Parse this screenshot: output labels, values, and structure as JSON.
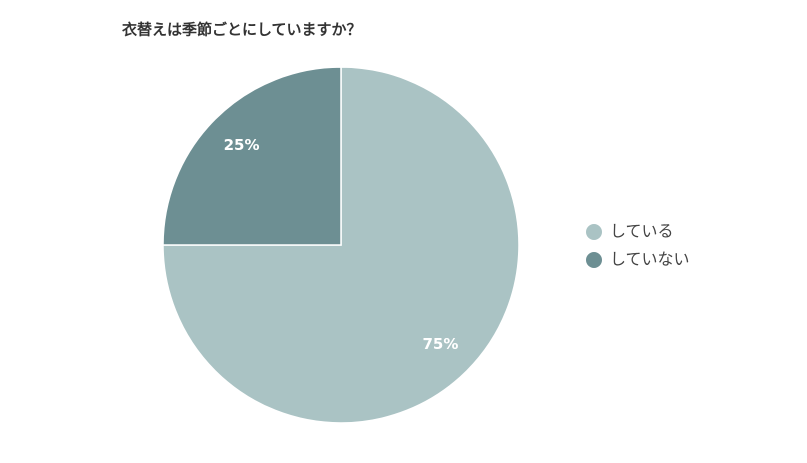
{
  "chart_data": {
    "type": "pie",
    "title": "衣替えは季節ごとにしていますか？",
    "categories": [
      "している",
      "していない"
    ],
    "values": [
      75,
      25
    ],
    "value_labels": [
      "75%",
      "25%"
    ],
    "colors": [
      "#aac3c4",
      "#6d8f93"
    ],
    "legend": "right"
  }
}
